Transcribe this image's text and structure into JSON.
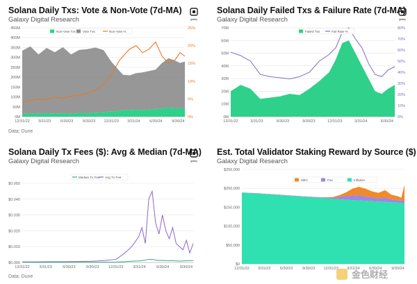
{
  "logo_text": "galaxy",
  "watermark_text": "金色财经",
  "panels": [
    {
      "title": "Solana Daily Txs: Vote & Non-Vote (7d-MA)",
      "subtitle": "Galaxy Digital Research",
      "source": "Data: Dune",
      "chart_data": {
        "type": "area",
        "x_ticks": [
          "12/31/22",
          "3/31/23",
          "6/30/23",
          "9/30/23",
          "12/31/23",
          "3/31/24",
          "6/30/24",
          "9/30/24"
        ],
        "y_ticks": [
          "0M",
          "50M",
          "100M",
          "150M",
          "200M",
          "250M",
          "300M",
          "350M",
          "400M",
          "450M"
        ],
        "y2_ticks": [
          "0%",
          "5%",
          "10%",
          "15%",
          "20%",
          "25%"
        ],
        "ylim": [
          0,
          450
        ],
        "y2lim": [
          0,
          25
        ],
        "legend": [
          "Non-Vote Txs",
          "Vote Txs",
          "Non-Vote %"
        ],
        "x": [
          0,
          0.05,
          0.1,
          0.15,
          0.2,
          0.25,
          0.3,
          0.35,
          0.4,
          0.45,
          0.5,
          0.55,
          0.6,
          0.62,
          0.66,
          0.7,
          0.74,
          0.78,
          0.82,
          0.86,
          0.9,
          0.94,
          0.97,
          1.0
        ],
        "series": [
          {
            "name": "Vote Txs",
            "color": "#8c8c8c",
            "values": [
              320,
              340,
              300,
              330,
              310,
              335,
              300,
              320,
              325,
              330,
              315,
              250,
              200,
              180,
              175,
              185,
              190,
              195,
              200,
              230,
              250,
              240,
              230,
              235
            ]
          },
          {
            "name": "Non-Vote Txs",
            "color": "#2fd08a",
            "values": [
              14,
              16,
              15,
              18,
              16,
              17,
              15,
              18,
              17,
              20,
              22,
              26,
              30,
              32,
              34,
              35,
              34,
              36,
              38,
              42,
              46,
              44,
              42,
              44
            ]
          },
          {
            "name": "Non-Vote %",
            "color": "#e77a22",
            "axis": "right",
            "values": [
              4,
              4.5,
              5,
              4.8,
              5.5,
              5.2,
              5.8,
              6,
              6.5,
              7.5,
              9,
              12,
              16,
              17,
              19,
              20,
              18,
              19,
              21,
              17,
              15,
              16,
              18,
              17
            ]
          }
        ]
      }
    },
    {
      "title": "Solana Daily Failed Txs & Failure Rate (7d-MA)",
      "subtitle": "Galaxy Digital Research",
      "chart_data": {
        "type": "area",
        "x_ticks": [
          "12/31/22",
          "3/31/23",
          "6/30/23",
          "9/30/23",
          "12/31/23",
          "3/31/24",
          "6/30/24"
        ],
        "y_ticks": [
          "0M",
          "10M",
          "20M",
          "30M",
          "40M",
          "50M",
          "60M",
          "70M"
        ],
        "y2_ticks": [
          "0%",
          "10%",
          "20%",
          "30%",
          "40%",
          "50%",
          "60%",
          "70%",
          "80%"
        ],
        "ylim": [
          0,
          70
        ],
        "y2lim": [
          0,
          80
        ],
        "legend": [
          "Failed Txs",
          "Fail Rate %"
        ],
        "x": [
          0,
          0.06,
          0.12,
          0.18,
          0.24,
          0.3,
          0.36,
          0.42,
          0.48,
          0.54,
          0.6,
          0.64,
          0.68,
          0.72,
          0.76,
          0.8,
          0.84,
          0.88,
          0.92,
          0.96,
          1.0
        ],
        "series": [
          {
            "name": "Failed Txs",
            "color": "#2fd08a",
            "values": [
              20,
              25,
              22,
              14,
              15,
              16,
              18,
              17,
              22,
              28,
              35,
              45,
              58,
              60,
              50,
              40,
              30,
              20,
              18,
              22,
              25
            ]
          },
          {
            "name": "Fail Rate %",
            "color": "#7b6bc9",
            "axis": "right",
            "values": [
              58,
              55,
              50,
              38,
              36,
              35,
              34,
              36,
              40,
              50,
              56,
              62,
              76,
              80,
              70,
              62,
              48,
              38,
              36,
              42,
              45
            ]
          }
        ]
      }
    },
    {
      "title": "Solana Daily Tx Fees ($): Avg & Median (7d-MA)",
      "subtitle": "Galaxy Digital Research",
      "source": "Data: Dune",
      "chart_data": {
        "type": "line",
        "x_ticks": [
          "12/31/22",
          "3/31/23",
          "6/30/23",
          "9/30/23",
          "12/31/23",
          "3/31/24",
          "6/30/24",
          "9/30/24"
        ],
        "y_ticks": [
          "$0.000",
          "$0.010",
          "$0.020",
          "$0.030",
          "$0.040",
          "$0.050"
        ],
        "ylim": [
          0,
          0.05
        ],
        "legend": [
          "Median Tx Fee",
          "Avg Tx Fee"
        ],
        "x": [
          0,
          0.08,
          0.16,
          0.24,
          0.32,
          0.4,
          0.48,
          0.55,
          0.6,
          0.64,
          0.68,
          0.7,
          0.72,
          0.74,
          0.76,
          0.78,
          0.8,
          0.82,
          0.84,
          0.86,
          0.88,
          0.9,
          0.92,
          0.94,
          0.96,
          0.98,
          1.0
        ],
        "series": [
          {
            "name": "Avg Tx Fee",
            "color": "#8a66c8",
            "values": [
              0.0004,
              0.0004,
              0.0005,
              0.0005,
              0.0006,
              0.0007,
              0.0012,
              0.002,
              0.006,
              0.01,
              0.016,
              0.022,
              0.012,
              0.04,
              0.045,
              0.025,
              0.018,
              0.03,
              0.02,
              0.015,
              0.022,
              0.012,
              0.01,
              0.008,
              0.014,
              0.006,
              0.012
            ]
          },
          {
            "name": "Median Tx Fee",
            "color": "#2fb07a",
            "values": [
              0.0001,
              0.0001,
              0.0001,
              0.0001,
              0.0001,
              0.0001,
              0.0002,
              0.0003,
              0.0005,
              0.0008,
              0.001,
              0.0012,
              0.0015,
              0.002,
              0.002,
              0.0015,
              0.0012,
              0.0013,
              0.0012,
              0.0011,
              0.0012,
              0.001,
              0.0009,
              0.001,
              0.0011,
              0.0012,
              0.0012
            ]
          }
        ]
      }
    },
    {
      "title": "Est. Total Validator Staking Reward by Source ($)",
      "subtitle": "Galaxy Digital Research",
      "chart_data": {
        "type": "area",
        "x_ticks": [
          "12/31/22",
          "3/31/23",
          "6/30/23",
          "9/30/23",
          "12/31/23",
          "3/31/24",
          "6/30/24",
          "9/30/24"
        ],
        "y_ticks": [
          "$0",
          "$50,000",
          "$100,000",
          "$150,000",
          "$200,000",
          "$250,000"
        ],
        "ylim": [
          0,
          250000
        ],
        "legend": [
          "MEV",
          "Fee",
          "Inflation"
        ],
        "x": [
          0,
          0.1,
          0.2,
          0.3,
          0.4,
          0.5,
          0.56,
          0.6,
          0.64,
          0.68,
          0.72,
          0.76,
          0.8,
          0.84,
          0.88,
          0.92,
          0.96,
          0.98,
          1.0
        ],
        "series": [
          {
            "name": "Inflation",
            "color": "#2fe0b0",
            "values": [
              188000,
              186000,
              183000,
              180000,
              177000,
              174000,
              172000,
              171000,
              170000,
              169000,
              168000,
              167000,
              166000,
              165000,
              164000,
              163000,
              162000,
              161000,
              160000
            ]
          },
          {
            "name": "Fee",
            "color": "#9f86e0",
            "values": [
              800,
              800,
              900,
              900,
              1000,
              1500,
              3000,
              6000,
              10000,
              12000,
              14000,
              12000,
              10000,
              9000,
              11000,
              8000,
              7000,
              6000,
              9000
            ]
          },
          {
            "name": "MEV",
            "color": "#f08a2a",
            "values": [
              200,
              200,
              300,
              300,
              400,
              800,
              2000,
              5000,
              9000,
              18000,
              22000,
              20000,
              16000,
              14000,
              20000,
              12000,
              10000,
              8000,
              40000
            ]
          }
        ]
      }
    }
  ]
}
